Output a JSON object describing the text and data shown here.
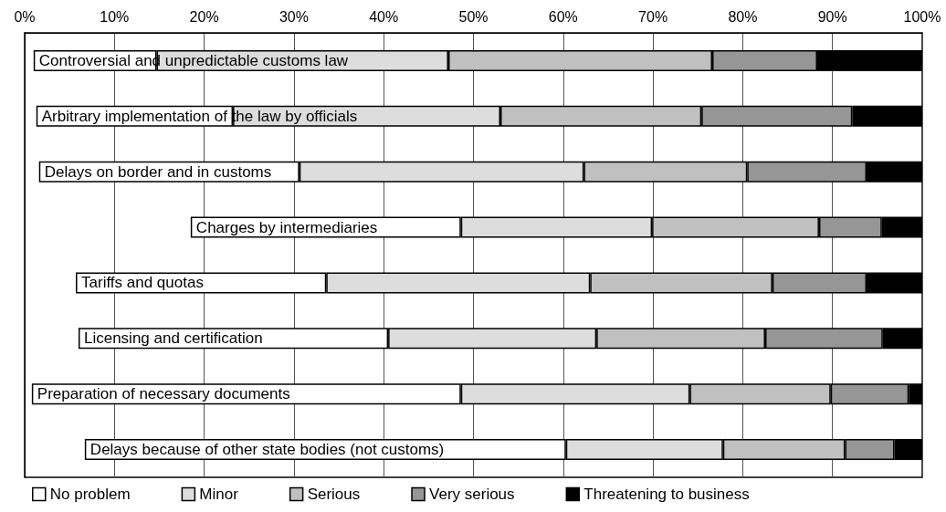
{
  "chart_data": {
    "type": "bar",
    "orientation": "horizontal",
    "categories": [
      "Controversial and unpredictable customs law",
      "Arbitrary implementation of the law by officials",
      "Delays on border and in customs",
      "Charges by intermediaries",
      "Tariffs and quotas",
      "Licensing and certification",
      "Preparation of necessary documents",
      "Delays because of other state bodies (not customs)"
    ],
    "series": [
      {
        "name": "No problem",
        "color": "#ffffff",
        "base": [
          1.0,
          1.3,
          1.6,
          18.5,
          5.7,
          6.0,
          0.8,
          6.7
        ],
        "values": [
          13.7,
          21.9,
          29.0,
          30.1,
          27.9,
          34.5,
          47.8,
          53.6
        ]
      },
      {
        "name": "Minor",
        "color": "#dddddd",
        "base": [
          14.7,
          23.2,
          30.6,
          48.6,
          33.6,
          40.5,
          48.6,
          60.3
        ],
        "values": [
          32.5,
          29.8,
          31.7,
          21.3,
          29.4,
          23.2,
          25.5,
          17.5
        ]
      },
      {
        "name": "Serious",
        "color": "#c0c0c0",
        "base": [
          47.2,
          53.0,
          62.3,
          69.9,
          63.0,
          63.7,
          74.1,
          77.8
        ],
        "values": [
          29.4,
          22.4,
          18.2,
          18.6,
          20.3,
          18.8,
          15.7,
          13.6
        ]
      },
      {
        "name": "Very serious",
        "color": "#969696",
        "base": [
          76.6,
          75.4,
          80.5,
          88.5,
          83.3,
          82.5,
          89.8,
          91.4
        ],
        "values": [
          11.7,
          16.8,
          13.3,
          7.0,
          10.5,
          13.1,
          8.7,
          5.5
        ]
      },
      {
        "name": "Threatening to business",
        "color": "#000000",
        "base": [
          88.3,
          92.2,
          93.8,
          95.5,
          93.8,
          95.6,
          98.5,
          96.9
        ],
        "values": [
          11.7,
          7.8,
          6.2,
          4.5,
          6.2,
          4.4,
          1.5,
          3.1
        ]
      }
    ],
    "xlim": [
      0,
      100
    ],
    "xticks": [
      {
        "value": 0,
        "label": "0%"
      },
      {
        "value": 10,
        "label": "10%"
      },
      {
        "value": 20,
        "label": "20%"
      },
      {
        "value": 30,
        "label": "30%"
      },
      {
        "value": 40,
        "label": "40%"
      },
      {
        "value": 50,
        "label": "50%"
      },
      {
        "value": 60,
        "label": "60%"
      },
      {
        "value": 70,
        "label": "70%"
      },
      {
        "value": 80,
        "label": "80%"
      },
      {
        "value": 90,
        "label": "90%"
      },
      {
        "value": 100,
        "label": "100%"
      }
    ],
    "grid": "x",
    "legend": "bottom"
  }
}
